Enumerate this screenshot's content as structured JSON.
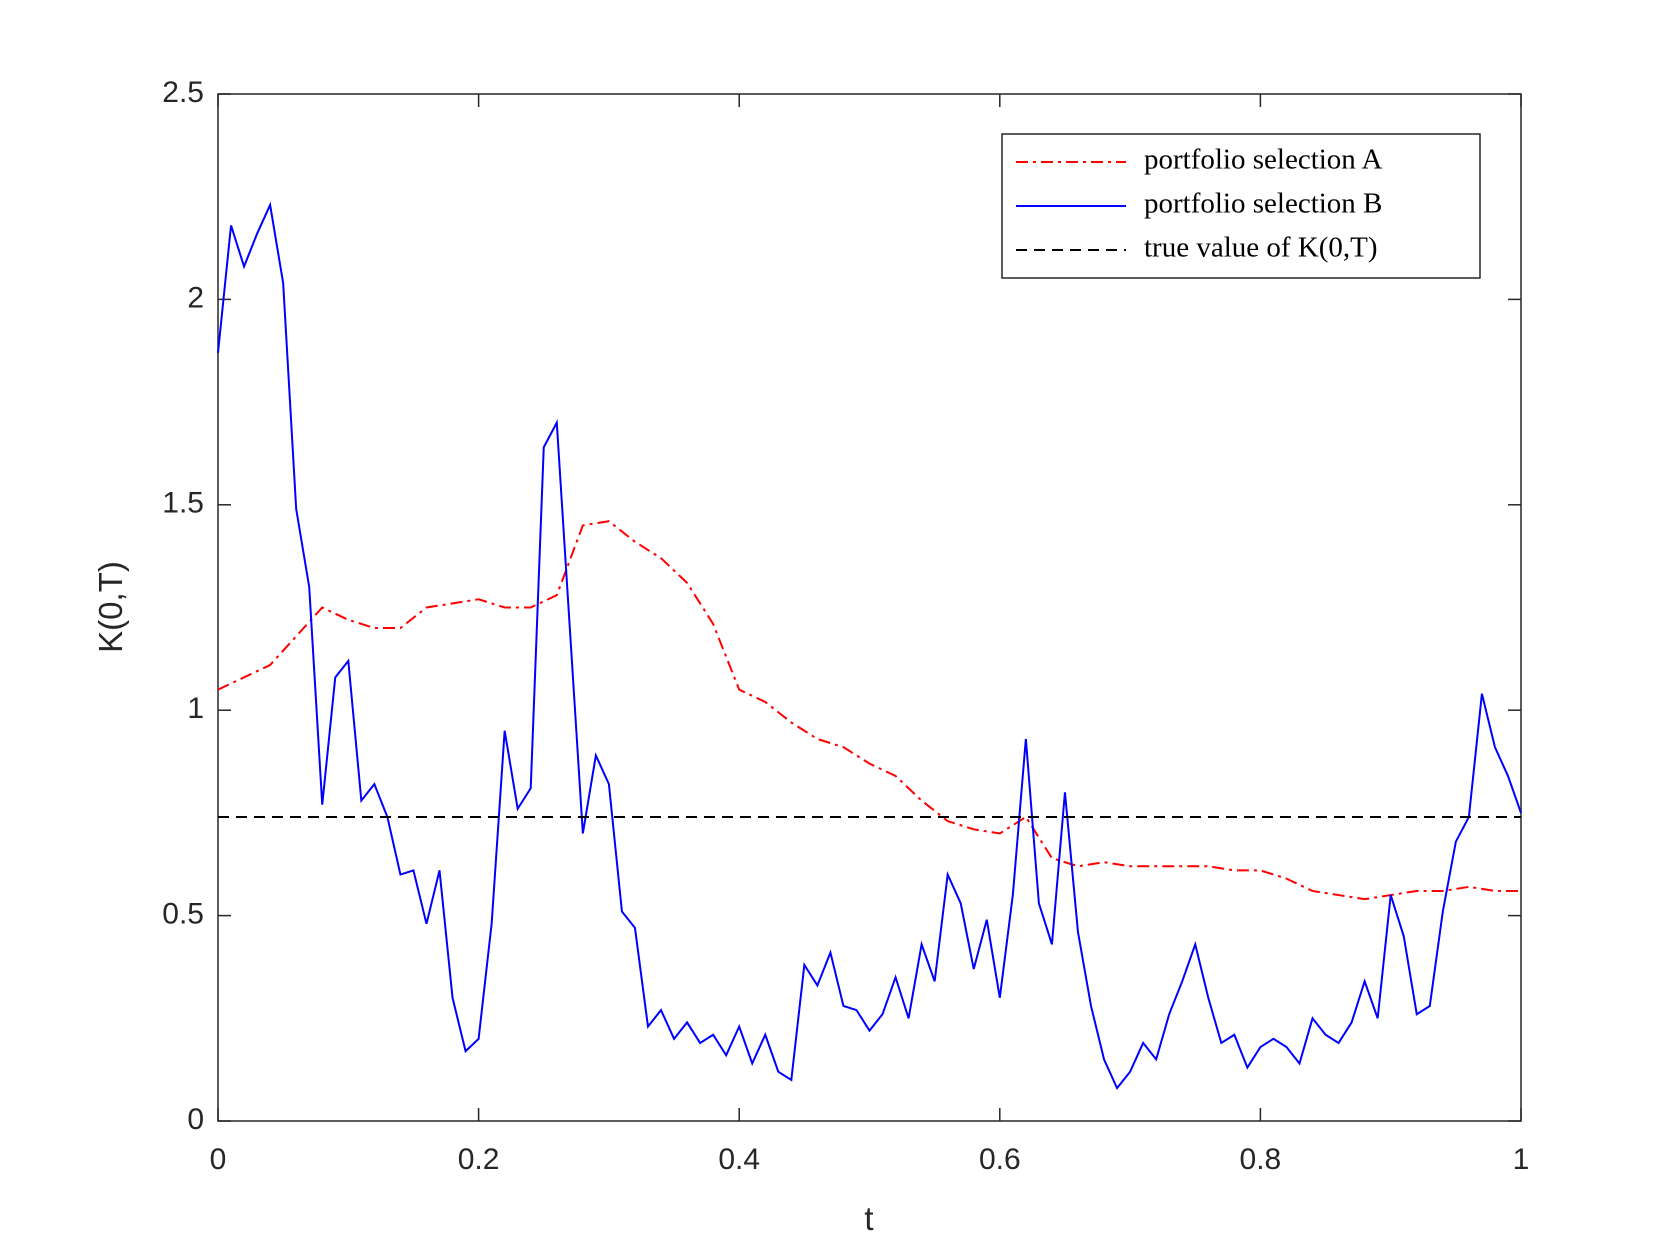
{
  "chart_data": {
    "type": "line",
    "xlabel": "t",
    "ylabel": "K(0,T)",
    "xlim": [
      0,
      1
    ],
    "ylim": [
      0,
      2.5
    ],
    "xticks": [
      0,
      0.2,
      0.4,
      0.6,
      0.8,
      1
    ],
    "yticks": [
      0,
      0.5,
      1,
      1.5,
      2,
      2.5
    ],
    "legend": "northeast",
    "series": [
      {
        "name": "portfolio selection A",
        "color": "#ff0000",
        "dash": "dashdot",
        "x": [
          0,
          0.02,
          0.04,
          0.06,
          0.08,
          0.1,
          0.12,
          0.14,
          0.16,
          0.18,
          0.2,
          0.22,
          0.24,
          0.26,
          0.28,
          0.3,
          0.32,
          0.34,
          0.36,
          0.38,
          0.4,
          0.42,
          0.44,
          0.46,
          0.48,
          0.5,
          0.52,
          0.54,
          0.56,
          0.58,
          0.6,
          0.62,
          0.64,
          0.66,
          0.68,
          0.7,
          0.72,
          0.74,
          0.76,
          0.78,
          0.8,
          0.82,
          0.84,
          0.86,
          0.88,
          0.9,
          0.92,
          0.94,
          0.96,
          0.98,
          1
        ],
        "values": [
          1.05,
          1.08,
          1.11,
          1.18,
          1.25,
          1.22,
          1.2,
          1.2,
          1.25,
          1.26,
          1.27,
          1.25,
          1.25,
          1.28,
          1.45,
          1.46,
          1.41,
          1.37,
          1.31,
          1.21,
          1.05,
          1.02,
          0.97,
          0.93,
          0.91,
          0.87,
          0.84,
          0.78,
          0.73,
          0.71,
          0.7,
          0.74,
          0.64,
          0.62,
          0.63,
          0.62,
          0.62,
          0.62,
          0.62,
          0.61,
          0.61,
          0.59,
          0.56,
          0.55,
          0.54,
          0.55,
          0.56,
          0.56,
          0.57,
          0.56,
          0.56
        ]
      },
      {
        "name": "portfolio selection B",
        "color": "#0000ff",
        "dash": "solid",
        "x": [
          0,
          0.01,
          0.02,
          0.03,
          0.04,
          0.05,
          0.06,
          0.07,
          0.08,
          0.09,
          0.1,
          0.11,
          0.12,
          0.13,
          0.14,
          0.15,
          0.16,
          0.17,
          0.18,
          0.19,
          0.2,
          0.21,
          0.22,
          0.23,
          0.24,
          0.25,
          0.26,
          0.27,
          0.28,
          0.29,
          0.3,
          0.31,
          0.32,
          0.33,
          0.34,
          0.35,
          0.36,
          0.37,
          0.38,
          0.39,
          0.4,
          0.41,
          0.42,
          0.43,
          0.44,
          0.45,
          0.46,
          0.47,
          0.48,
          0.49,
          0.5,
          0.51,
          0.52,
          0.53,
          0.54,
          0.55,
          0.56,
          0.57,
          0.58,
          0.59,
          0.6,
          0.61,
          0.62,
          0.63,
          0.64,
          0.65,
          0.66,
          0.67,
          0.68,
          0.69,
          0.7,
          0.71,
          0.72,
          0.73,
          0.74,
          0.75,
          0.76,
          0.77,
          0.78,
          0.79,
          0.8,
          0.81,
          0.82,
          0.83,
          0.84,
          0.85,
          0.86,
          0.87,
          0.88,
          0.89,
          0.9,
          0.91,
          0.92,
          0.93,
          0.94,
          0.95,
          0.96,
          0.97,
          0.98,
          0.99,
          1
        ],
        "values": [
          1.87,
          2.18,
          2.08,
          2.16,
          2.23,
          2.04,
          1.49,
          1.3,
          0.77,
          1.08,
          1.12,
          0.78,
          0.82,
          0.74,
          0.6,
          0.61,
          0.48,
          0.61,
          0.3,
          0.17,
          0.2,
          0.48,
          0.95,
          0.76,
          0.81,
          1.64,
          1.7,
          1.2,
          0.7,
          0.89,
          0.82,
          0.51,
          0.47,
          0.23,
          0.27,
          0.2,
          0.24,
          0.19,
          0.21,
          0.16,
          0.23,
          0.14,
          0.21,
          0.12,
          0.1,
          0.38,
          0.33,
          0.41,
          0.28,
          0.27,
          0.22,
          0.26,
          0.35,
          0.25,
          0.43,
          0.34,
          0.6,
          0.53,
          0.37,
          0.49,
          0.3,
          0.55,
          0.93,
          0.53,
          0.43,
          0.8,
          0.46,
          0.28,
          0.15,
          0.08,
          0.12,
          0.19,
          0.15,
          0.26,
          0.34,
          0.43,
          0.3,
          0.19,
          0.21,
          0.13,
          0.18,
          0.2,
          0.18,
          0.14,
          0.25,
          0.21,
          0.19,
          0.24,
          0.34,
          0.25,
          0.55,
          0.45,
          0.26,
          0.28,
          0.51,
          0.68,
          0.74,
          1.04,
          0.91,
          0.84,
          0.75
        ]
      },
      {
        "name": "true value of K(0,T)",
        "color": "#000000",
        "dash": "dashed",
        "x": [
          0,
          1
        ],
        "values": [
          0.74,
          0.74
        ]
      }
    ]
  }
}
